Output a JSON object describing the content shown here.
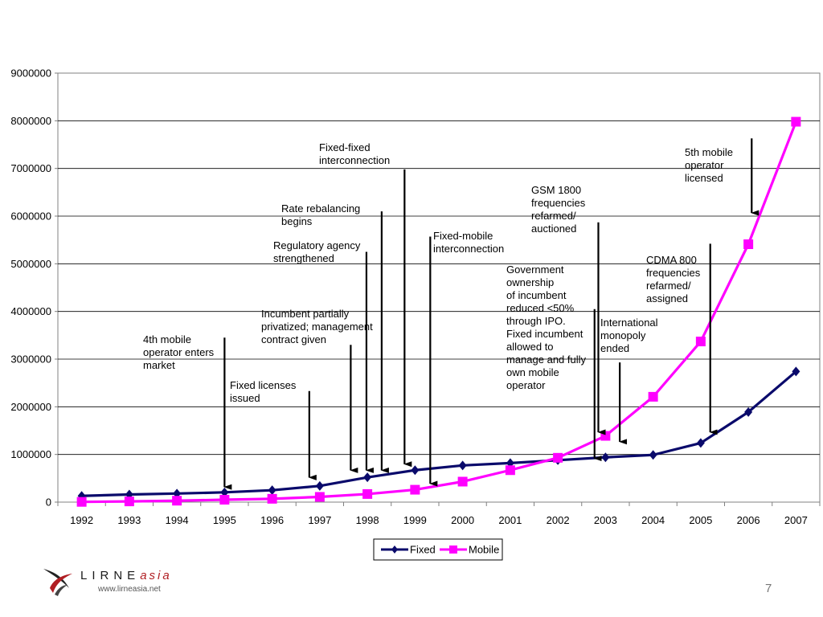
{
  "chart_data": {
    "type": "line",
    "categories": [
      "1992",
      "1993",
      "1994",
      "1995",
      "1996",
      "1997",
      "1998",
      "1999",
      "2000",
      "2001",
      "2002",
      "2003",
      "2004",
      "2005",
      "2006",
      "2007"
    ],
    "series": [
      {
        "name": "Fixed",
        "color": "#0a0a6b",
        "marker": "diamond",
        "values": [
          130000,
          160000,
          180000,
          205000,
          250000,
          340000,
          520000,
          670000,
          770000,
          820000,
          880000,
          940000,
          990000,
          1240000,
          1890000,
          2740000
        ]
      },
      {
        "name": "Mobile",
        "color": "#ff00ff",
        "marker": "square",
        "values": [
          5000,
          15000,
          30000,
          50000,
          70000,
          110000,
          170000,
          260000,
          430000,
          670000,
          930000,
          1390000,
          2210000,
          3370000,
          5410000,
          7980000
        ]
      }
    ],
    "ylim": [
      0,
      9000000
    ],
    "yticks": [
      "0",
      "1000000",
      "2000000",
      "3000000",
      "4000000",
      "5000000",
      "6000000",
      "7000000",
      "8000000",
      "9000000"
    ],
    "grid": true,
    "legend_position": "bottom",
    "annotations": [
      {
        "lines": [
          "4th mobile",
          "operator enters",
          "market"
        ],
        "arrow_x": 1995,
        "arrow_from": 3450000,
        "arrow_to": 300000
      },
      {
        "lines": [
          "Fixed licenses",
          "issued"
        ],
        "arrow_x": 1996.78,
        "arrow_from": 2330000,
        "arrow_to": 500000
      },
      {
        "lines": [
          "Incumbent partially",
          "privatized; management",
          "contract given"
        ],
        "arrow_x": 1997.65,
        "arrow_from": 3300000,
        "arrow_to": 650000
      },
      {
        "lines": [
          "Regulatory agency",
          "strengthened"
        ],
        "arrow_x": 1997.98,
        "arrow_from": 5250000,
        "arrow_to": 650000
      },
      {
        "lines": [
          "Rate rebalancing",
          "begins"
        ],
        "arrow_x": 1998.3,
        "arrow_from": 6100000,
        "arrow_to": 650000
      },
      {
        "lines": [
          "Fixed-fixed",
          "interconnection"
        ],
        "arrow_x": 1998.78,
        "arrow_from": 6980000,
        "arrow_to": 780000
      },
      {
        "lines": [
          "Fixed-mobile",
          "interconnection"
        ],
        "arrow_x": 1999.32,
        "arrow_from": 5570000,
        "arrow_to": 370000
      },
      {
        "lines": [
          "GSM 1800",
          "frequencies",
          "refarmed/",
          "auctioned"
        ],
        "arrow_x": 2002.85,
        "arrow_from": 5870000,
        "arrow_to": 1450000
      },
      {
        "lines": [
          "Government",
          "ownership",
          "of incumbent",
          "reduced <50%",
          "through IPO.",
          "Fixed incumbent",
          "allowed to",
          "manage and fully",
          "own mobile",
          "operator"
        ],
        "arrow_x": 2002.77,
        "arrow_from": 4050000,
        "arrow_to": 900000
      },
      {
        "lines": [
          "International",
          "monopoly",
          "ended"
        ],
        "arrow_x": 2003.3,
        "arrow_from": 2930000,
        "arrow_to": 1250000
      },
      {
        "lines": [
          "CDMA 800",
          "frequencies",
          "refarmed/",
          "assigned"
        ],
        "arrow_x": 2005.2,
        "arrow_from": 5420000,
        "arrow_to": 1450000
      },
      {
        "lines": [
          "5th mobile",
          "operator",
          "licensed"
        ],
        "arrow_x": 2006.07,
        "arrow_from": 7630000,
        "arrow_to": 6050000
      }
    ]
  },
  "logo": {
    "brand": "LIRNE",
    "brand_suffix": "asia",
    "url": "www.lirneasia.net"
  },
  "slide_number": "7"
}
